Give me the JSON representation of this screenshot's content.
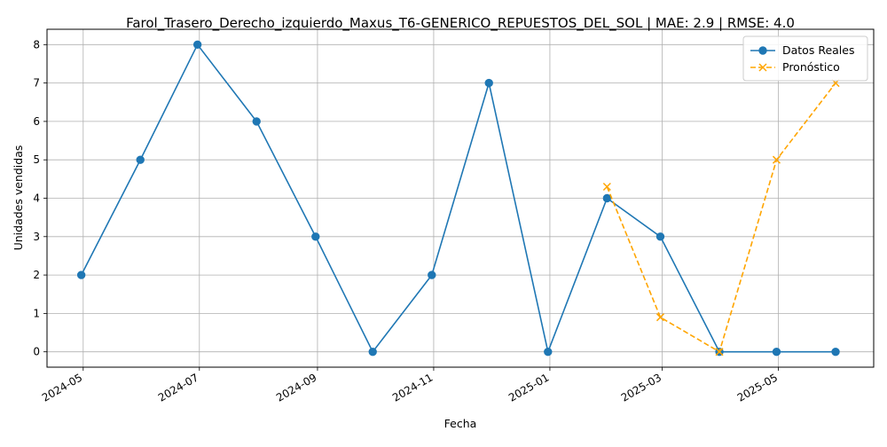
{
  "chart_data": {
    "type": "line",
    "title": "Farol_Trasero_Derecho_izquierdo_Maxus_T6-GENERICO_REPUESTOS_DEL_SOL | MAE: 2.9 | RMSE: 4.0",
    "xlabel": "Fecha",
    "ylabel": "Unidades vendidas",
    "ylim": [
      -0.4,
      8.4
    ],
    "xlim": [
      "2024-04-12",
      "2025-06-20"
    ],
    "grid": true,
    "legend_position": "top-right",
    "x_tick_labels": [
      "2024-05",
      "2024-07",
      "2024-09",
      "2024-11",
      "2025-01",
      "2025-03",
      "2025-05"
    ],
    "x_tick_dates": [
      "2024-05-01",
      "2024-07-01",
      "2024-09-01",
      "2024-11-01",
      "2025-01-01",
      "2025-03-01",
      "2025-05-01"
    ],
    "y_ticks": [
      0,
      1,
      2,
      3,
      4,
      5,
      6,
      7,
      8
    ],
    "series": [
      {
        "name": "Datos Reales",
        "color": "#1f77b4",
        "line_style": "solid",
        "marker": "circle",
        "x": [
          "2024-04-30",
          "2024-05-31",
          "2024-06-30",
          "2024-07-31",
          "2024-08-31",
          "2024-09-30",
          "2024-10-31",
          "2024-11-30",
          "2024-12-31",
          "2025-01-31",
          "2025-02-28",
          "2025-03-31",
          "2025-04-30",
          "2025-05-31"
        ],
        "values": [
          2,
          5,
          8,
          6,
          3,
          0,
          2,
          7,
          0,
          4,
          3,
          0,
          0,
          0
        ]
      },
      {
        "name": "Pronóstico",
        "color": "#ffa500",
        "line_style": "dashed",
        "marker": "x",
        "x": [
          "2025-01-31",
          "2025-02-28",
          "2025-03-31",
          "2025-04-30",
          "2025-05-31"
        ],
        "values": [
          4.3,
          0.9,
          0.0,
          5.0,
          7.0
        ]
      }
    ]
  }
}
